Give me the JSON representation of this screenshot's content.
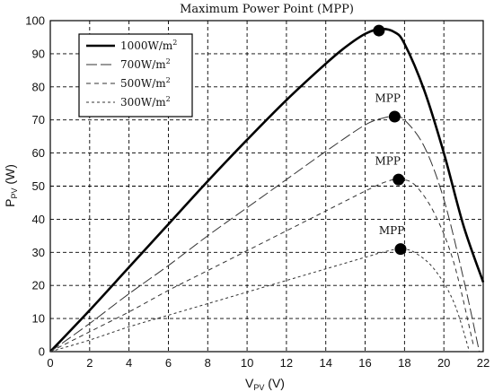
{
  "chart_data": {
    "type": "line",
    "title": "Maximum Power Point (MPP)",
    "xlabel": {
      "main": "V",
      "sub": "PV",
      "unit": " (V)"
    },
    "ylabel": {
      "main": "P",
      "sub": "PV",
      "unit": " (W)"
    },
    "xlim": [
      0,
      22
    ],
    "ylim": [
      0,
      100
    ],
    "xticks": [
      0,
      2,
      4,
      6,
      8,
      10,
      12,
      14,
      16,
      18,
      20,
      22
    ],
    "yticks": [
      0,
      10,
      20,
      30,
      40,
      50,
      60,
      70,
      80,
      90,
      100
    ],
    "grid": true,
    "legend_position": "top-left",
    "series": [
      {
        "name": "1000W/m",
        "name_sup": "2",
        "style": "solid-thick",
        "color": "#000000",
        "x": [
          0,
          2,
          4,
          6,
          8,
          10,
          12,
          14,
          15,
          16,
          16.8,
          17.5,
          18,
          19,
          20,
          21,
          22
        ],
        "y": [
          0,
          12.5,
          25.5,
          38.5,
          51.5,
          64,
          76,
          87,
          92,
          96,
          97.5,
          96.5,
          93,
          79,
          60,
          38,
          21
        ]
      },
      {
        "name": "700W/m",
        "name_sup": "2",
        "style": "long-dash",
        "color": "#333333",
        "x": [
          0,
          2,
          4,
          6,
          8,
          10,
          12,
          14,
          16,
          17,
          17.5,
          18,
          19,
          20,
          21,
          21.8
        ],
        "y": [
          0,
          8.5,
          17.5,
          26,
          35,
          43.5,
          52,
          60.5,
          68.5,
          70.7,
          71,
          70,
          62,
          46,
          22,
          0
        ]
      },
      {
        "name": "500W/m",
        "name_sup": "2",
        "style": "dash",
        "color": "#333333",
        "x": [
          0,
          2,
          4,
          6,
          8,
          10,
          12,
          14,
          16,
          17,
          17.7,
          18.5,
          19.5,
          20.5,
          21.5
        ],
        "y": [
          0,
          6,
          12,
          18.5,
          24.5,
          30.5,
          36.5,
          42.5,
          48.5,
          51.2,
          52,
          50.5,
          42,
          27,
          2
        ]
      },
      {
        "name": "300W/m",
        "name_sup": "2",
        "style": "short-dash",
        "color": "#333333",
        "x": [
          0,
          2,
          4,
          6,
          8,
          10,
          12,
          14,
          16,
          17,
          17.8,
          18.5,
          19.5,
          20.5,
          21.3
        ],
        "y": [
          0,
          3.5,
          7.5,
          11,
          14.5,
          18,
          21.5,
          25,
          28.5,
          30.2,
          31,
          30,
          25,
          15,
          0
        ]
      }
    ],
    "mpp_points": [
      {
        "x": 16.7,
        "y": 97
      },
      {
        "x": 17.5,
        "y": 71
      },
      {
        "x": 17.7,
        "y": 52
      },
      {
        "x": 17.8,
        "y": 31
      }
    ],
    "annotations": [
      {
        "text": "MPP",
        "x": 16.5,
        "y": 75.5
      },
      {
        "text": "MPP",
        "x": 16.5,
        "y": 56.5
      },
      {
        "text": "MPP",
        "x": 16.7,
        "y": 35.5
      }
    ]
  }
}
